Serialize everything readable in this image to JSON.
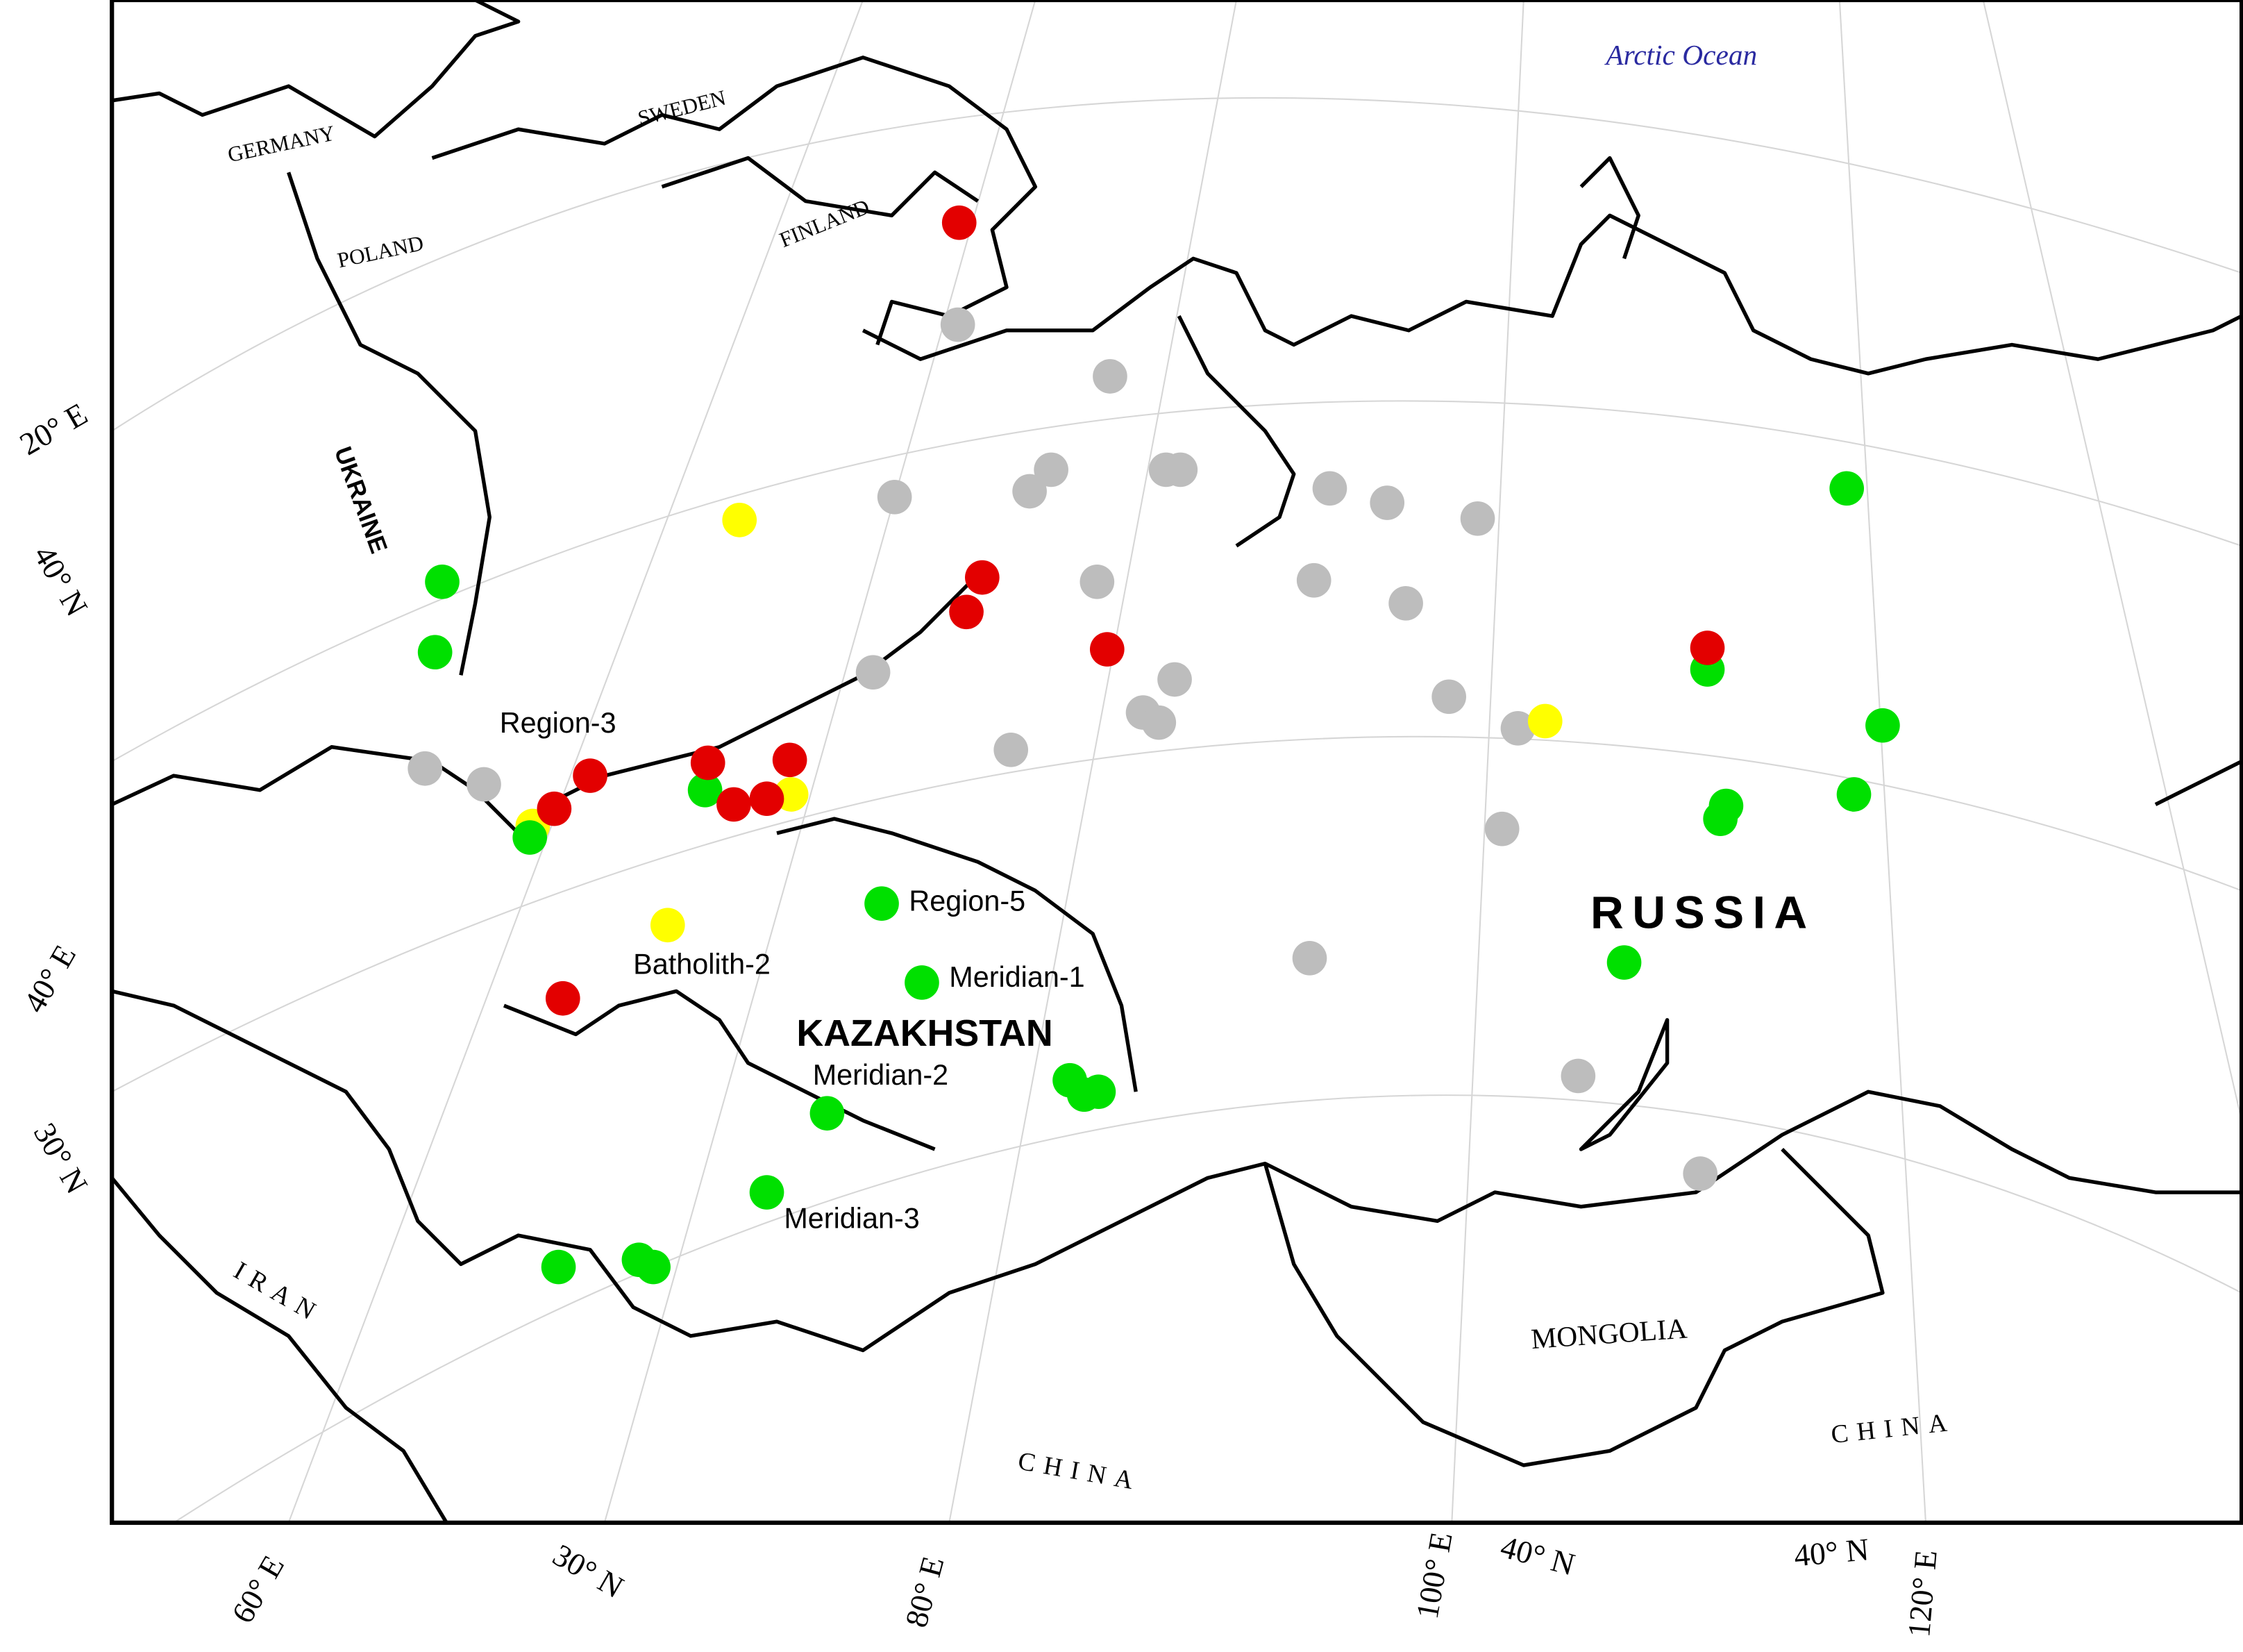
{
  "map": {
    "ocean_label": "Arctic Ocean",
    "country_labels": [
      "GERMANY",
      "SWEDEN",
      "POLAND",
      "FINLAND",
      "UKRAINE",
      "KAZAKHSTAN",
      "RUSSIA",
      "IRAN",
      "MONGOLIA",
      "CHINA",
      "CHINA"
    ],
    "site_labels": [
      "Region-3",
      "Region-5",
      "Batholith-2",
      "Meridian-1",
      "Meridian-2",
      "Meridian-3"
    ],
    "graticule_labels": [
      "20° E",
      "40° N",
      "40° E",
      "30° N",
      "60° E",
      "30° N",
      "80° E",
      "100° E",
      "40° N",
      "40° N",
      "120° E"
    ]
  }
}
